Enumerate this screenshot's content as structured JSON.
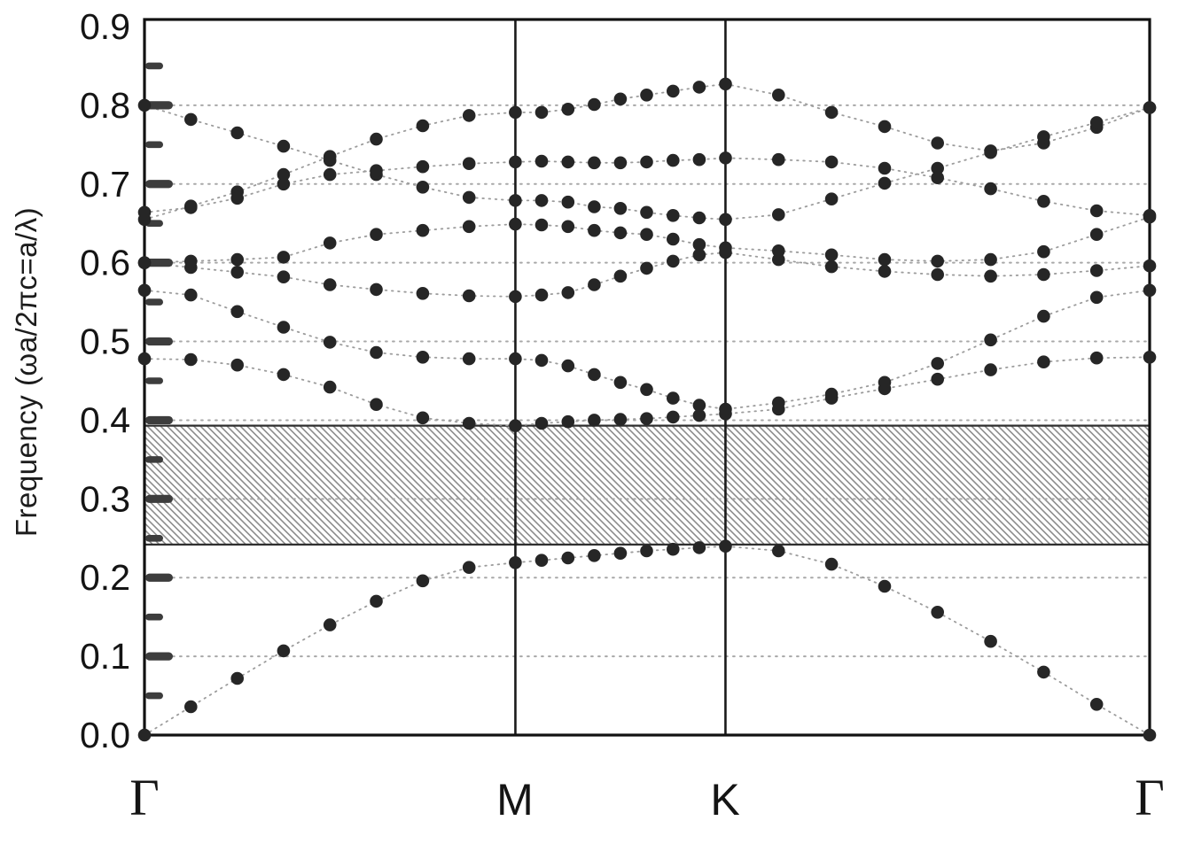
{
  "figure": {
    "background": "#ffffff",
    "description": "Photonic crystal band structure diagram with hatched band gap"
  },
  "chart_data": {
    "type": "scatter",
    "title": "",
    "xlabel": "",
    "ylabel": "Frequency (ωa/2πc=a/λ)",
    "ylim": [
      0,
      0.909
    ],
    "grid": "dotted horizontal gridlines at 0.1 steps from 0.1 to 0.8",
    "legend": "none",
    "kpoint_labels": [
      "Γ",
      "M",
      "K",
      "Γ"
    ],
    "kpoint_positions": [
      0,
      0.369,
      0.578,
      1
    ],
    "y_tick_labels": [
      "0.0",
      "0.1",
      "0.2",
      "0.3",
      "0.4",
      "0.5",
      "0.6",
      "0.7",
      "0.8",
      "0.9"
    ],
    "y_major_ticks": [
      0.0,
      0.1,
      0.2,
      0.3,
      0.4,
      0.5,
      0.6,
      0.7,
      0.8,
      0.9
    ],
    "y_major_tick_bars": [
      0.1,
      0.2,
      0.3,
      0.4,
      0.5,
      0.6,
      0.7,
      0.8
    ],
    "y_minor_ticks": [
      0.05,
      0.15,
      0.25,
      0.35,
      0.45,
      0.55,
      0.65,
      0.75,
      0.85
    ],
    "gridline_values": [
      0.1,
      0.2,
      0.3,
      0.4,
      0.5,
      0.6,
      0.7,
      0.8
    ],
    "band_gap": {
      "from": 0.242,
      "to": 0.393,
      "style": "diagonal-hatch",
      "hatch_direction": "top-left-to-bottom-right"
    },
    "k_t": [
      0,
      0.0461,
      0.0923,
      0.1384,
      0.1845,
      0.2306,
      0.2768,
      0.3229,
      0.369,
      0.3951,
      0.4213,
      0.4474,
      0.4735,
      0.4996,
      0.5258,
      0.5519,
      0.578,
      0.6308,
      0.6835,
      0.7363,
      0.789,
      0.8418,
      0.8945,
      0.9473,
      1
    ],
    "series": [
      {
        "name": "band-1",
        "values": [
          0.0,
          0.036,
          0.072,
          0.107,
          0.14,
          0.17,
          0.196,
          0.213,
          0.219,
          0.222,
          0.225,
          0.228,
          0.231,
          0.234,
          0.236,
          0.238,
          0.24,
          0.234,
          0.217,
          0.189,
          0.156,
          0.119,
          0.08,
          0.039,
          0.0
        ]
      },
      {
        "name": "band-2",
        "values": [
          0.478,
          0.477,
          0.47,
          0.458,
          0.442,
          0.42,
          0.403,
          0.396,
          0.393,
          0.396,
          0.398,
          0.4,
          0.401,
          0.402,
          0.404,
          0.406,
          0.408,
          0.414,
          0.428,
          0.44,
          0.452,
          0.464,
          0.474,
          0.479,
          0.48
        ]
      },
      {
        "name": "band-3",
        "values": [
          0.565,
          0.559,
          0.538,
          0.518,
          0.499,
          0.486,
          0.48,
          0.478,
          0.478,
          0.476,
          0.469,
          0.458,
          0.448,
          0.439,
          0.428,
          0.419,
          0.414,
          0.422,
          0.433,
          0.448,
          0.472,
          0.502,
          0.532,
          0.556,
          0.565
        ]
      },
      {
        "name": "band-4",
        "values": [
          0.6,
          0.594,
          0.588,
          0.582,
          0.572,
          0.566,
          0.561,
          0.558,
          0.557,
          0.559,
          0.562,
          0.572,
          0.583,
          0.593,
          0.602,
          0.61,
          0.613,
          0.604,
          0.595,
          0.589,
          0.585,
          0.583,
          0.585,
          0.59,
          0.596
        ]
      },
      {
        "name": "band-5",
        "values": [
          0.6,
          0.602,
          0.604,
          0.607,
          0.625,
          0.636,
          0.641,
          0.646,
          0.649,
          0.648,
          0.646,
          0.641,
          0.638,
          0.636,
          0.63,
          0.623,
          0.619,
          0.615,
          0.61,
          0.604,
          0.602,
          0.604,
          0.614,
          0.636,
          0.658
        ]
      },
      {
        "name": "band-6",
        "values": [
          0.655,
          0.672,
          0.69,
          0.712,
          0.735,
          0.757,
          0.774,
          0.787,
          0.791,
          0.791,
          0.795,
          0.801,
          0.808,
          0.813,
          0.818,
          0.823,
          0.827,
          0.813,
          0.791,
          0.773,
          0.752,
          0.742,
          0.752,
          0.772,
          0.797
        ]
      },
      {
        "name": "band-7",
        "values": [
          0.8,
          0.782,
          0.765,
          0.748,
          0.73,
          0.712,
          0.696,
          0.683,
          0.679,
          0.679,
          0.677,
          0.671,
          0.669,
          0.664,
          0.66,
          0.657,
          0.655,
          0.661,
          0.681,
          0.701,
          0.72,
          0.74,
          0.76,
          0.778,
          0.797
        ]
      },
      {
        "name": "band-8",
        "values": [
          0.664,
          0.67,
          0.682,
          0.7,
          0.712,
          0.717,
          0.722,
          0.726,
          0.728,
          0.729,
          0.728,
          0.727,
          0.727,
          0.728,
          0.73,
          0.731,
          0.733,
          0.731,
          0.728,
          0.72,
          0.708,
          0.694,
          0.678,
          0.666,
          0.66
        ]
      }
    ],
    "colors": {
      "point": "#262626",
      "connector": "#9c9c9c",
      "grid": "#a8a8a8",
      "axis": "#111111",
      "tick": "#3d3d3d",
      "hatch_line": "#8c8c8c",
      "hatch_border": "#2f2f2f",
      "kline": "#1a1a1a",
      "label": "#141414"
    }
  }
}
